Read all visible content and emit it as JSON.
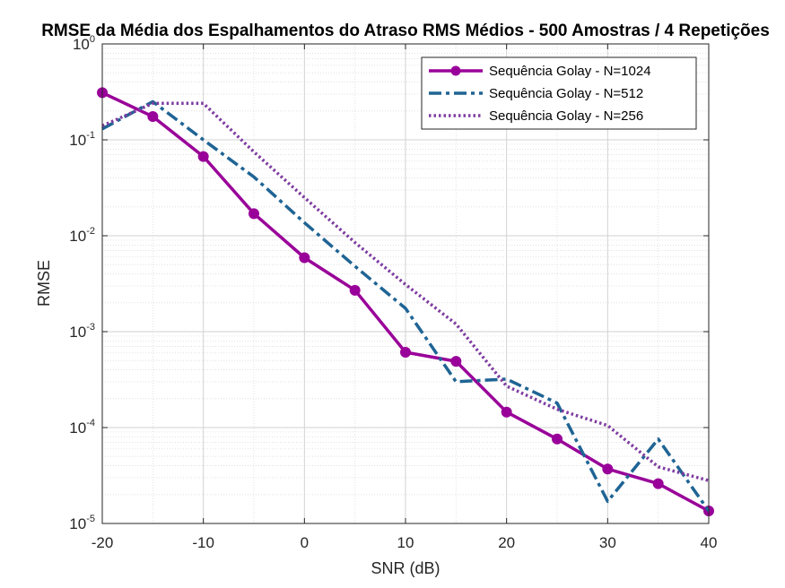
{
  "chart_data": {
    "type": "line",
    "title": "RMSE da Média dos Espalhamentos do Atraso RMS Médios - 500 Amostras / 4 Repetições",
    "xlabel": "SNR (dB)",
    "ylabel": "RMSE",
    "xlim": [
      -20,
      40
    ],
    "ylim": [
      1e-05,
      1
    ],
    "yscale": "log",
    "grid": true,
    "minor_grid": true,
    "legend_position": "top-right",
    "x_ticks": [
      "-20",
      "-10",
      "0",
      "10",
      "20",
      "30",
      "40"
    ],
    "y_ticks": [
      {
        "base": "10",
        "exp": "0"
      },
      {
        "base": "10",
        "exp": "-1"
      },
      {
        "base": "10",
        "exp": "-2"
      },
      {
        "base": "10",
        "exp": "-3"
      },
      {
        "base": "10",
        "exp": "-4"
      },
      {
        "base": "10",
        "exp": "-5"
      }
    ],
    "x": [
      -20,
      -15,
      -10,
      -5,
      0,
      5,
      10,
      15,
      20,
      25,
      30,
      35,
      40
    ],
    "series": [
      {
        "name": "Sequência Golay - N=1024",
        "color": "#990099",
        "style": "solid-marker",
        "values": [
          0.31,
          0.175,
          0.067,
          0.017,
          0.0059,
          0.0027,
          0.00061,
          0.00049,
          0.000145,
          7.6e-05,
          3.7e-05,
          2.6e-05,
          1.35e-05
        ]
      },
      {
        "name": "Sequência Golay - N=512",
        "color": "#1f6494",
        "style": "dashdot",
        "values": [
          0.13,
          0.25,
          0.1,
          0.041,
          0.0137,
          0.0048,
          0.00175,
          0.0003,
          0.00032,
          0.00018,
          1.7e-05,
          7.6e-05,
          1.35e-05
        ]
      },
      {
        "name": "Sequência Golay - N=256",
        "color": "#7e3ca0",
        "style": "dotted",
        "values": [
          0.14,
          0.24,
          0.24,
          0.075,
          0.025,
          0.0085,
          0.0031,
          0.0012,
          0.00027,
          0.000155,
          0.000105,
          3.9e-05,
          2.8e-05
        ]
      }
    ]
  }
}
